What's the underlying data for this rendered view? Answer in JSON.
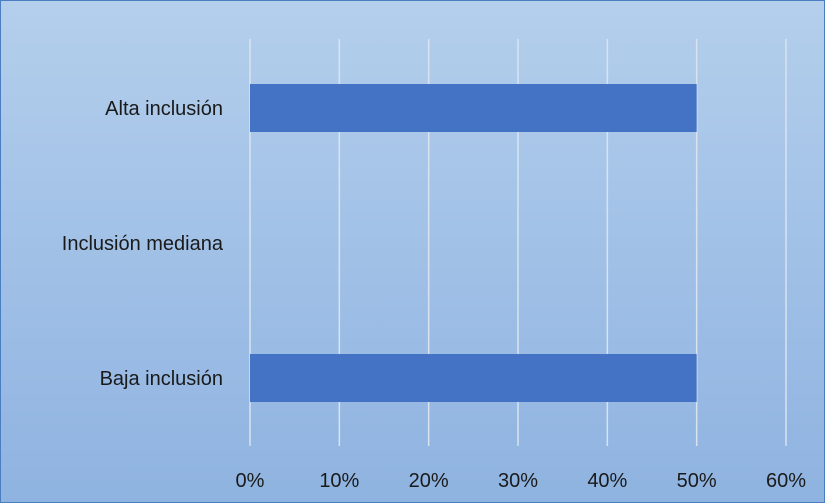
{
  "chart_data": {
    "type": "bar",
    "orientation": "horizontal",
    "categories": [
      "Alta inclusión",
      "Inclusión mediana",
      "Baja inclusión"
    ],
    "values": [
      50,
      0,
      50
    ],
    "xlim": [
      0,
      60
    ],
    "x_ticks": [
      "0%",
      "10%",
      "20%",
      "30%",
      "40%",
      "50%",
      "60%"
    ],
    "grid": "vertical",
    "bar_color": "#4472c4",
    "grid_color": "#d9e3f0",
    "title": "",
    "xlabel": "",
    "ylabel": ""
  }
}
